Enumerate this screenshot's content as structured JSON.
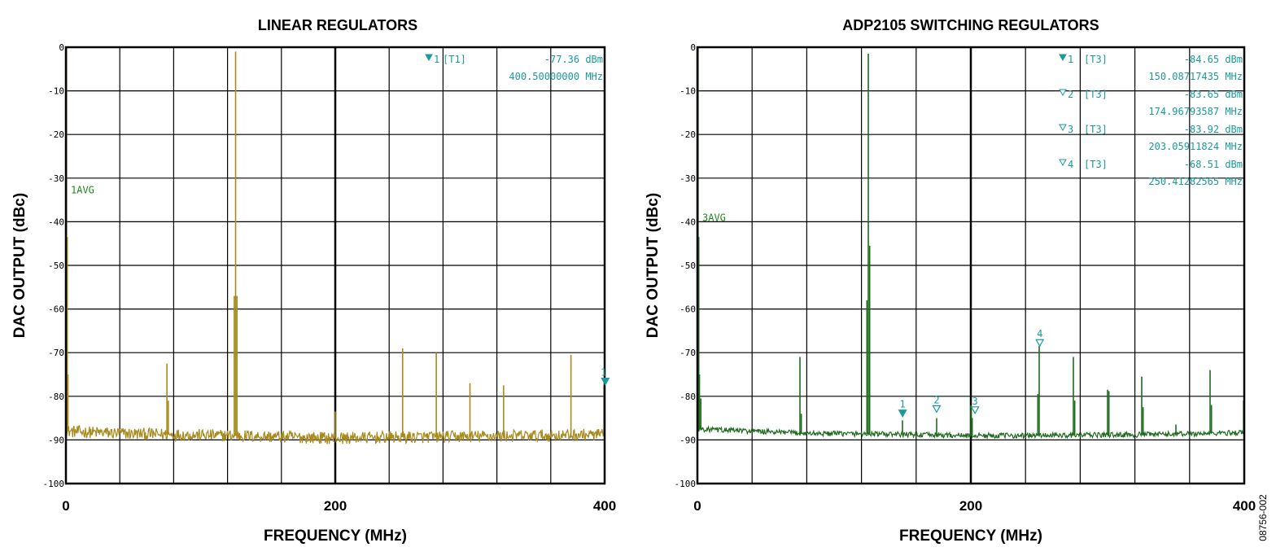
{
  "doc_id": "08756-002",
  "chart_data": [
    {
      "type": "line",
      "title": "LINEAR REGULATORS",
      "xlabel": "FREQUENCY (MHz)",
      "ylabel": "DAC OUTPUT (dBc)",
      "xlim": [
        0,
        400
      ],
      "ylim": [
        -100,
        0
      ],
      "x_ticks": [
        "0",
        "200",
        "400"
      ],
      "y_ticks": [
        "0",
        "-10",
        "-20",
        "-30",
        "-40",
        "-50",
        "-60",
        "-70",
        "-80",
        "-90",
        "-100"
      ],
      "grid": true,
      "trace_color": "#a88a1c",
      "marker_color": "#1a9a9a",
      "mode_label_color": "#1a8a1a",
      "mode_label": "1AVG",
      "noise_floor": [
        {
          "x": 0,
          "y": -88.0
        },
        {
          "x": 40,
          "y": -88.5
        },
        {
          "x": 80,
          "y": -88.8
        },
        {
          "x": 120,
          "y": -89.0
        },
        {
          "x": 160,
          "y": -89.3
        },
        {
          "x": 200,
          "y": -89.6
        },
        {
          "x": 240,
          "y": -89.4
        },
        {
          "x": 280,
          "y": -89.3
        },
        {
          "x": 320,
          "y": -89.1
        },
        {
          "x": 360,
          "y": -89.0
        },
        {
          "x": 400,
          "y": -88.8
        }
      ],
      "spurs": [
        {
          "x": 0.5,
          "y": 0.0
        },
        {
          "x": 1.0,
          "y": -43.5
        },
        {
          "x": 1.5,
          "y": -75.0
        },
        {
          "x": 75.0,
          "y": -72.5
        },
        {
          "x": 76.0,
          "y": -81.0
        },
        {
          "x": 125.0,
          "y": -57.0
        },
        {
          "x": 126.0,
          "y": -1.0
        },
        {
          "x": 127.0,
          "y": -57.0
        },
        {
          "x": 200.0,
          "y": -83.5
        },
        {
          "x": 250.0,
          "y": -69.0
        },
        {
          "x": 275.0,
          "y": -70.0
        },
        {
          "x": 300.0,
          "y": -77.0
        },
        {
          "x": 325.0,
          "y": -77.5
        },
        {
          "x": 375.0,
          "y": -70.5
        },
        {
          "x": 399.5,
          "y": -77.4
        }
      ],
      "markers": [
        {
          "label": "1",
          "x": 400.5,
          "y": -77.36,
          "filled": true
        }
      ],
      "marker_table": [
        {
          "id": "1",
          "trace": "[T1]",
          "level": "-77.36 dBm",
          "freq": "400.50000000 MHz"
        }
      ]
    },
    {
      "type": "line",
      "title": "ADP2105 SWITCHING REGULATORS",
      "xlabel": "FREQUENCY (MHz)",
      "ylabel": "DAC OUTPUT (dBc)",
      "xlim": [
        0,
        400
      ],
      "ylim": [
        -100,
        0
      ],
      "x_ticks": [
        "0",
        "200",
        "400"
      ],
      "y_ticks": [
        "0",
        "-10",
        "-20",
        "-30",
        "-40",
        "-50",
        "-60",
        "-70",
        "-80",
        "-90",
        "-100"
      ],
      "grid": true,
      "trace_color": "#1f6b1f",
      "marker_color": "#1a9a9a",
      "mode_label_color": "#1a8a1a",
      "mode_label": "3AVG",
      "noise_floor": [
        {
          "x": 0,
          "y": -87.5
        },
        {
          "x": 40,
          "y": -88.0
        },
        {
          "x": 80,
          "y": -88.5
        },
        {
          "x": 120,
          "y": -88.6
        },
        {
          "x": 160,
          "y": -88.8
        },
        {
          "x": 200,
          "y": -89.0
        },
        {
          "x": 240,
          "y": -89.0
        },
        {
          "x": 280,
          "y": -88.9
        },
        {
          "x": 320,
          "y": -88.8
        },
        {
          "x": 360,
          "y": -88.6
        },
        {
          "x": 400,
          "y": -88.3
        }
      ],
      "spurs": [
        {
          "x": 0.5,
          "y": 0.0
        },
        {
          "x": 1.0,
          "y": -43.5
        },
        {
          "x": 1.5,
          "y": -75.0
        },
        {
          "x": 2.5,
          "y": -80.5
        },
        {
          "x": 75.0,
          "y": -71.0
        },
        {
          "x": 76.0,
          "y": -84.0
        },
        {
          "x": 124.0,
          "y": -58.0
        },
        {
          "x": 125.0,
          "y": -1.5
        },
        {
          "x": 126.0,
          "y": -45.5
        },
        {
          "x": 150.0,
          "y": -85.5
        },
        {
          "x": 175.0,
          "y": -85.0
        },
        {
          "x": 200.0,
          "y": -82.0
        },
        {
          "x": 201.0,
          "y": -85.0
        },
        {
          "x": 249.0,
          "y": -79.5
        },
        {
          "x": 250.0,
          "y": -68.5
        },
        {
          "x": 275.0,
          "y": -71.0
        },
        {
          "x": 276.0,
          "y": -81.0
        },
        {
          "x": 300.0,
          "y": -78.5
        },
        {
          "x": 301.0,
          "y": -78.8
        },
        {
          "x": 325.0,
          "y": -75.5
        },
        {
          "x": 326.0,
          "y": -82.5
        },
        {
          "x": 350.0,
          "y": -86.5
        },
        {
          "x": 375.0,
          "y": -74.0
        },
        {
          "x": 376.0,
          "y": -82.0
        },
        {
          "x": 399.5,
          "y": -81.0
        }
      ],
      "markers": [
        {
          "label": "1",
          "x": 150.08717435,
          "y": -84.65,
          "filled": true
        },
        {
          "label": "2",
          "x": 174.96793587,
          "y": -83.65,
          "filled": false
        },
        {
          "label": "3",
          "x": 203.05911824,
          "y": -83.92,
          "filled": false
        },
        {
          "label": "4",
          "x": 250.41282565,
          "y": -68.51,
          "filled": false
        }
      ],
      "marker_table": [
        {
          "id": "1",
          "trace": "[T3]",
          "level": "-84.65 dBm",
          "freq": "150.08717435 MHz"
        },
        {
          "id": "2",
          "trace": "[T3]",
          "level": "-83.65 dBm",
          "freq": "174.96793587 MHz"
        },
        {
          "id": "3",
          "trace": "[T3]",
          "level": "-83.92 dBm",
          "freq": "203.05911824 MHz"
        },
        {
          "id": "4",
          "trace": "[T3]",
          "level": "-68.51 dBm",
          "freq": "250.41282565 MHz"
        }
      ]
    }
  ]
}
